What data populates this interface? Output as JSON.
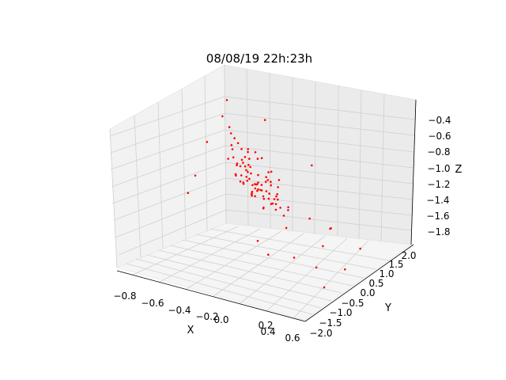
{
  "chart_data": {
    "type": "scatter",
    "projection": "3d",
    "title": "08/08/19 22h:23h",
    "xlabel": "X",
    "ylabel": "Y",
    "zlabel": "Z",
    "xlim": [
      -0.9,
      0.6
    ],
    "ylim": [
      -2.0,
      2.0
    ],
    "zlim": [
      -1.9,
      -0.3
    ],
    "xticks": [
      "−0.8",
      "−0.6",
      "−0.4",
      "−0.2",
      "0.0",
      "0.2",
      "0.4",
      "0.6"
    ],
    "yticks": [
      "−2.0",
      "−1.5",
      "−1.0",
      "−0.5",
      "0.0",
      "0.5",
      "1.0",
      "1.5",
      "2.0"
    ],
    "zticks": [
      "−1.8",
      "−1.6",
      "−1.4",
      "−1.2",
      "−1.0",
      "−0.8",
      "−0.6",
      "−0.4"
    ],
    "marker_color": "#ff0000",
    "grid": true,
    "series": [
      {
        "points": [
          [
            -0.3,
            0.1,
            -1.15
          ],
          [
            -0.25,
            0.2,
            -1.18
          ],
          [
            -0.2,
            0.05,
            -1.22
          ],
          [
            -0.28,
            -0.1,
            -1.1
          ],
          [
            -0.35,
            0.3,
            -1.05
          ],
          [
            -0.15,
            0.15,
            -1.25
          ],
          [
            -0.22,
            -0.05,
            -1.2
          ],
          [
            -0.32,
            0.25,
            -1.12
          ],
          [
            -0.18,
            0.35,
            -1.2
          ],
          [
            -0.26,
            0.0,
            -1.28
          ],
          [
            -0.4,
            0.4,
            -1.0
          ],
          [
            -0.12,
            0.2,
            -1.3
          ],
          [
            -0.3,
            -0.2,
            -1.08
          ],
          [
            -0.24,
            0.45,
            -1.15
          ],
          [
            -0.36,
            0.1,
            -0.98
          ],
          [
            -0.2,
            -0.15,
            -1.26
          ],
          [
            -0.45,
            0.5,
            -0.95
          ],
          [
            -0.1,
            0.05,
            -1.32
          ],
          [
            -0.28,
            0.3,
            -1.22
          ],
          [
            -0.16,
            -0.25,
            -1.18
          ],
          [
            -0.5,
            0.6,
            -0.92
          ],
          [
            -0.05,
            0.1,
            -1.35
          ],
          [
            -0.34,
            -0.05,
            -1.02
          ],
          [
            -0.22,
            0.55,
            -1.1
          ],
          [
            -0.42,
            0.2,
            -1.05
          ],
          [
            -0.14,
            0.4,
            -1.28
          ],
          [
            -0.26,
            -0.3,
            -1.14
          ],
          [
            -0.38,
            0.35,
            -1.12
          ],
          [
            -0.08,
            -0.1,
            -1.3
          ],
          [
            -0.32,
            0.5,
            -1.0
          ],
          [
            -0.55,
            0.7,
            -0.9
          ],
          [
            -0.02,
            0.25,
            -1.38
          ],
          [
            -0.46,
            0.05,
            -1.0
          ],
          [
            -0.18,
            0.65,
            -1.18
          ],
          [
            -0.3,
            -0.4,
            -1.06
          ],
          [
            -0.12,
            -0.2,
            -1.34
          ],
          [
            -0.6,
            0.8,
            -0.88
          ],
          [
            0.0,
            0.0,
            -1.4
          ],
          [
            -0.36,
            0.6,
            -0.96
          ],
          [
            -0.24,
            0.15,
            -1.24
          ],
          [
            -0.2,
            0.25,
            -1.16
          ],
          [
            -0.27,
            0.08,
            -1.2
          ],
          [
            -0.33,
            0.18,
            -1.1
          ],
          [
            -0.17,
            0.02,
            -1.27
          ],
          [
            -0.29,
            0.38,
            -1.14
          ],
          [
            -0.23,
            -0.12,
            -1.23
          ],
          [
            -0.39,
            0.28,
            -1.04
          ],
          [
            -0.13,
            0.32,
            -1.29
          ],
          [
            -0.31,
            -0.08,
            -1.17
          ],
          [
            -0.21,
            0.48,
            -1.19
          ],
          [
            -0.37,
            0.42,
            -1.01
          ],
          [
            -0.09,
            0.12,
            -1.33
          ],
          [
            -0.44,
            0.15,
            -0.99
          ],
          [
            -0.15,
            -0.05,
            -1.28
          ],
          [
            -0.25,
            0.58,
            -1.12
          ],
          [
            -0.35,
            -0.18,
            -1.09
          ],
          [
            -0.11,
            0.28,
            -1.31
          ],
          [
            -0.41,
            0.55,
            -0.97
          ],
          [
            -0.19,
            -0.32,
            -1.21
          ],
          [
            -0.27,
            0.22,
            -1.21
          ],
          [
            -0.48,
            0.3,
            -0.94
          ],
          [
            -0.06,
            -0.02,
            -1.36
          ],
          [
            -0.33,
            0.7,
            -1.02
          ],
          [
            -0.21,
            -0.22,
            -1.25
          ],
          [
            -0.52,
            0.45,
            -0.93
          ],
          [
            -0.04,
            0.35,
            -1.37
          ],
          [
            -0.38,
            0.0,
            -1.03
          ],
          [
            -0.16,
            0.52,
            -1.23
          ],
          [
            -0.29,
            -0.28,
            -1.13
          ],
          [
            -0.43,
            0.65,
            -0.96
          ],
          [
            -0.1,
            -0.3,
            -1.33
          ],
          [
            -0.26,
            0.12,
            -1.19
          ],
          [
            -0.34,
            0.32,
            -1.07
          ],
          [
            -0.14,
            0.08,
            -1.29
          ],
          [
            -0.22,
            0.42,
            -1.17
          ],
          [
            -0.3,
            0.02,
            -1.16
          ],
          [
            -0.24,
            0.28,
            -1.21
          ],
          [
            -0.18,
            0.18,
            -1.24
          ],
          [
            -0.36,
            0.22,
            -1.06
          ],
          [
            -0.2,
            0.1,
            -1.23
          ],
          [
            0.1,
            0.5,
            -1.45
          ],
          [
            0.2,
            0.8,
            -1.55
          ],
          [
            0.15,
            -0.6,
            -1.4
          ],
          [
            -0.7,
            1.2,
            -0.9
          ],
          [
            -0.8,
            1.4,
            -0.85
          ],
          [
            0.3,
            -1.0,
            -1.6
          ],
          [
            0.25,
            0.3,
            -1.65
          ],
          [
            -0.6,
            -0.8,
            -1.3
          ],
          [
            0.4,
            1.0,
            -1.7
          ],
          [
            -0.5,
            1.6,
            -0.8
          ],
          [
            0.05,
            -1.2,
            -1.5
          ],
          [
            0.35,
            -0.4,
            -1.75
          ],
          [
            -0.75,
            0.6,
            -1.0
          ],
          [
            0.45,
            0.2,
            -1.8
          ],
          [
            -0.1,
            1.5,
            -1.1
          ],
          [
            0.2,
            -1.5,
            -1.55
          ],
          [
            -0.65,
            -0.3,
            -1.2
          ],
          [
            0.5,
            -0.8,
            -1.85
          ],
          [
            -0.85,
            1.8,
            -0.75
          ],
          [
            0.12,
            1.2,
            -1.62
          ]
        ]
      }
    ]
  }
}
